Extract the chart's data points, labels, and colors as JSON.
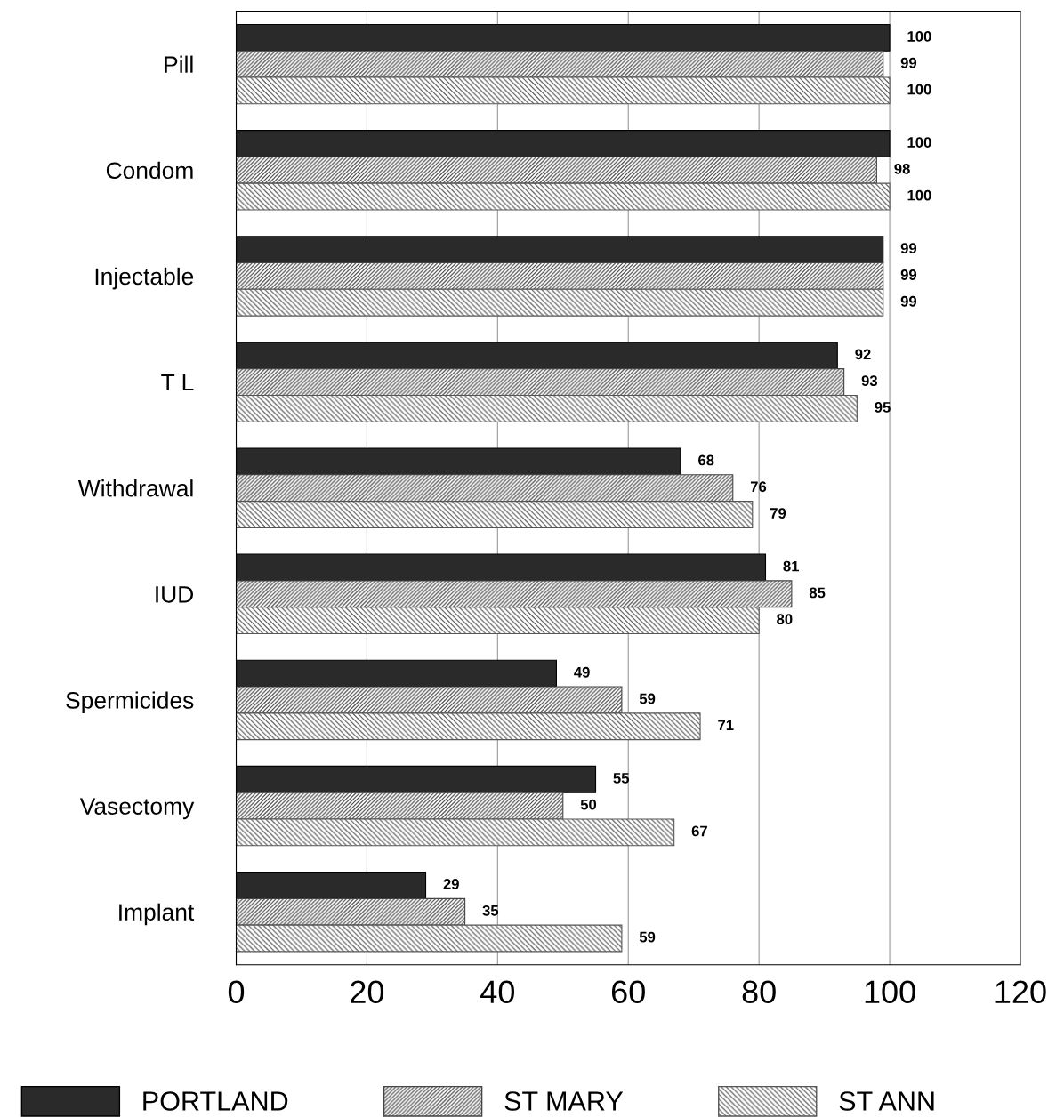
{
  "chart_data": {
    "type": "bar",
    "orientation": "horizontal",
    "categories": [
      "Pill",
      "Condom",
      "Injectable",
      "T L",
      "Withdrawal",
      "IUD",
      "Spermicides",
      "Vasectomy",
      "Implant"
    ],
    "series": [
      {
        "name": "PORTLAND",
        "color": "#2a2a2a",
        "values": [
          100,
          100,
          99,
          92,
          68,
          81,
          49,
          55,
          29
        ]
      },
      {
        "name": "ST MARY",
        "color": "#444444",
        "values": [
          99,
          98,
          99,
          93,
          76,
          85,
          59,
          50,
          35
        ]
      },
      {
        "name": "ST ANN",
        "color": "#555555",
        "values": [
          100,
          100,
          99,
          95,
          79,
          80,
          71,
          67,
          59
        ]
      }
    ],
    "xlim": [
      0,
      120
    ],
    "xticks": [
      0,
      20,
      40,
      60,
      80,
      100,
      120
    ],
    "grid": "x",
    "legend": "bottom",
    "data_labels": true
  }
}
